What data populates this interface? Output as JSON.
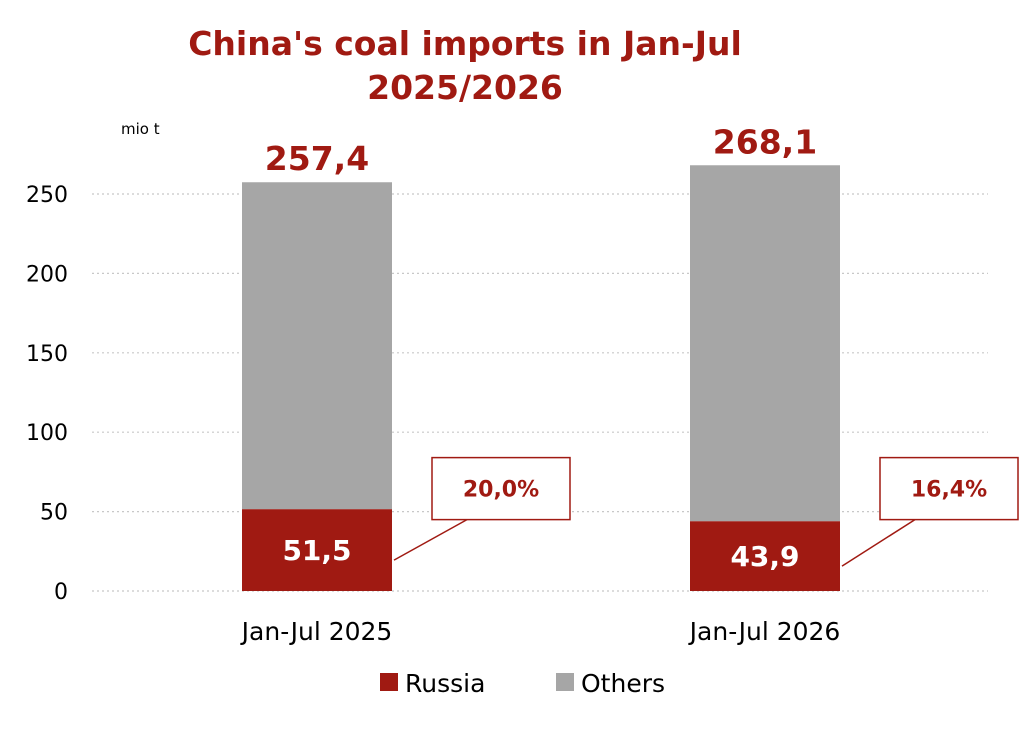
{
  "chart_data": {
    "type": "bar",
    "stacked": true,
    "title": [
      "China's coal imports in Jan-Jul",
      "2025/2026"
    ],
    "unit_label": "mio t",
    "categories": [
      "Jan-Jul 2025",
      "Jan-Jul 2026"
    ],
    "series": [
      {
        "name": "Russia",
        "values": [
          51.5,
          43.9
        ],
        "color": "#A01A12",
        "labels": [
          "51,5",
          "43,9"
        ]
      },
      {
        "name": "Others",
        "values": [
          205.9,
          224.2
        ],
        "color": "#A6A6A6"
      }
    ],
    "totals": [
      257.4,
      268.1
    ],
    "total_labels": [
      "257,4",
      "268,1"
    ],
    "share_callouts": [
      "20,0%",
      "16,4%"
    ],
    "ylim": [
      0,
      250
    ],
    "yticks": [
      0,
      50,
      100,
      150,
      200,
      250
    ],
    "grid": true,
    "legend_position": "bottom"
  }
}
